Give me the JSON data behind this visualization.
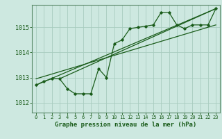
{
  "title": "Graphe pression niveau de la mer (hPa)",
  "background_color": "#cde8e0",
  "grid_color": "#a8ccbf",
  "line_color": "#1a5c1a",
  "text_color": "#1a5c1a",
  "x_ticks": [
    0,
    1,
    2,
    3,
    4,
    5,
    6,
    7,
    8,
    9,
    10,
    11,
    12,
    13,
    14,
    15,
    16,
    17,
    18,
    19,
    20,
    21,
    22,
    23
  ],
  "y_ticks": [
    1012,
    1013,
    1014,
    1015
  ],
  "ylim": [
    1011.6,
    1015.9
  ],
  "xlim": [
    -0.5,
    23.5
  ],
  "hourly_data": [
    1012.7,
    1012.85,
    1012.95,
    1012.95,
    1012.55,
    1012.35,
    1012.35,
    1012.35,
    1013.35,
    1013.0,
    1014.35,
    1014.5,
    1014.95,
    1015.0,
    1015.05,
    1015.1,
    1015.6,
    1015.6,
    1015.1,
    1014.95,
    1015.1,
    1015.1,
    1015.1,
    1015.75
  ],
  "trend1_x": [
    0,
    23
  ],
  "trend1_y": [
    1012.7,
    1015.75
  ],
  "trend2_x": [
    0,
    23
  ],
  "trend2_y": [
    1012.95,
    1015.1
  ],
  "trend3_x": [
    3,
    23
  ],
  "trend3_y": [
    1012.95,
    1015.75
  ]
}
